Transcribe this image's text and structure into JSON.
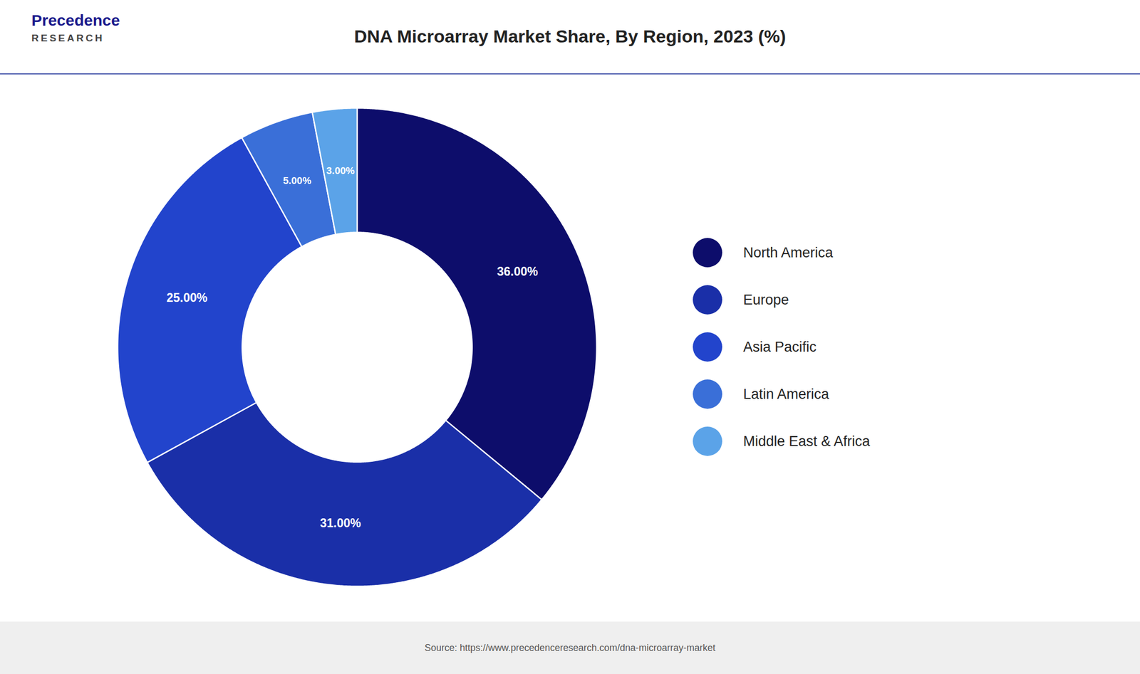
{
  "chart_data": {
    "type": "pie",
    "title": "DNA Microarray Market Share, By Region, 2023 (%)",
    "categories": [
      "North America",
      "Europe",
      "Asia Pacific",
      "Latin America",
      "Middle East & Africa"
    ],
    "values": [
      36.0,
      31.0,
      25.0,
      5.0,
      3.0
    ],
    "value_labels": [
      "36.00%",
      "31.00%",
      "25.00%",
      "5.00%",
      "3.00%"
    ],
    "data_labels": true,
    "colors": [
      "#0d0d6b",
      "#1a2fa8",
      "#2244cc",
      "#3a6fd8",
      "#5ba3e8"
    ],
    "legend": "right",
    "annotations": [
      "Precedence",
      "RESEARCH"
    ],
    "source": "Source: https://www.precedenceresearch.com/dna-microarray-market"
  }
}
